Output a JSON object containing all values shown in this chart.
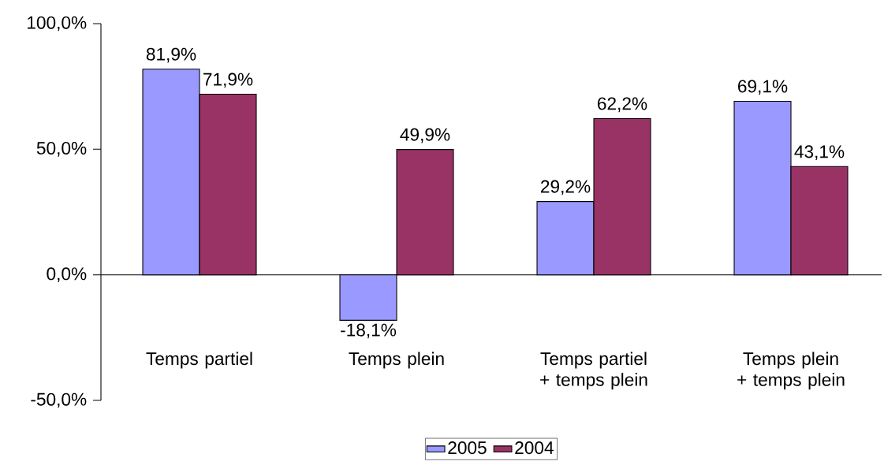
{
  "chart_data": {
    "type": "bar",
    "categories": [
      "Temps partiel",
      "Temps plein",
      "Temps partiel + temps plein",
      "Temps plein + temps plein"
    ],
    "series": [
      {
        "name": "2005",
        "color": "#9999ff",
        "values": [
          81.9,
          -18.1,
          29.2,
          69.1
        ],
        "value_labels": [
          "81,9%",
          "-18,1%",
          "29,2%",
          "69,1%"
        ]
      },
      {
        "name": "2004",
        "color": "#993366",
        "values": [
          71.9,
          49.9,
          62.2,
          43.1
        ],
        "value_labels": [
          "71,9%",
          "49,9%",
          "62,2%",
          "43,1%"
        ]
      }
    ],
    "ylim": [
      -50,
      100
    ],
    "yticks": [
      {
        "value": -50,
        "label": "-50,0%"
      },
      {
        "value": 0,
        "label": "0,0%"
      },
      {
        "value": 50,
        "label": "50,0%"
      },
      {
        "value": 100,
        "label": "100,0%"
      }
    ],
    "legend": "bottom"
  }
}
